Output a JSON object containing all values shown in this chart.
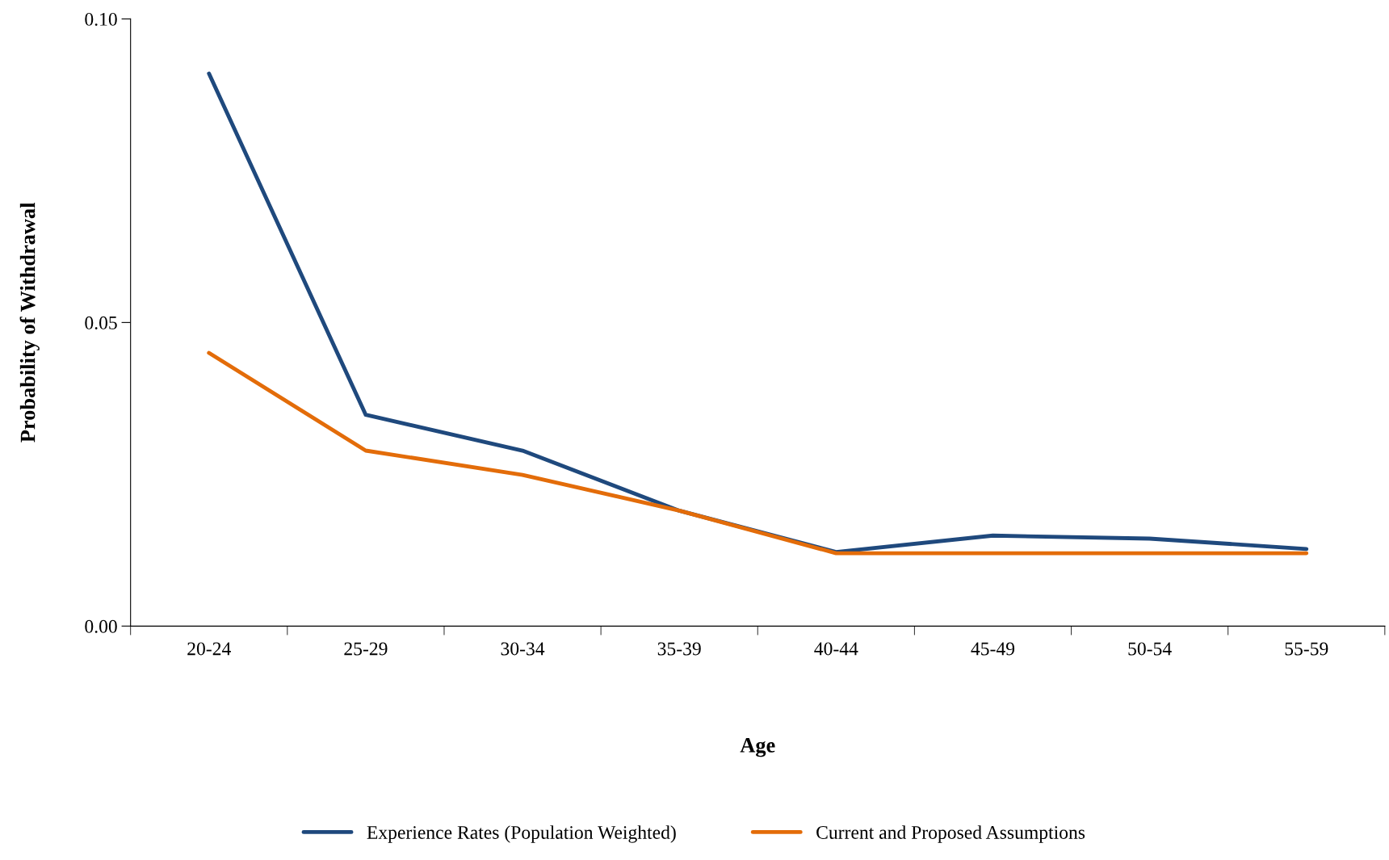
{
  "chart_data": {
    "type": "line",
    "xlabel": "Age",
    "ylabel": "Probability of Withdrawal",
    "categories": [
      "20-24",
      "25-29",
      "30-34",
      "35-39",
      "40-44",
      "45-49",
      "50-54",
      "55-59"
    ],
    "series": [
      {
        "name": "Experience Rates (Population Weighted)",
        "color": "#1f497d",
        "values": [
          0.091,
          0.0348,
          0.0289,
          0.019,
          0.0122,
          0.0149,
          0.0144,
          0.0127
        ]
      },
      {
        "name": "Current and Proposed Assumptions",
        "color": "#e36c09",
        "values": [
          0.045,
          0.0289,
          0.0249,
          0.019,
          0.012,
          0.012,
          0.012,
          0.012
        ]
      }
    ],
    "ylim": [
      0,
      0.1
    ],
    "yticks": [
      {
        "value": 0,
        "label": "0.00"
      },
      {
        "value": 0.05,
        "label": "0.05"
      },
      {
        "value": 0.1,
        "label": "0.10"
      }
    ],
    "grid": false,
    "legend": "bottom",
    "marker": "none",
    "line_style": "solid"
  }
}
